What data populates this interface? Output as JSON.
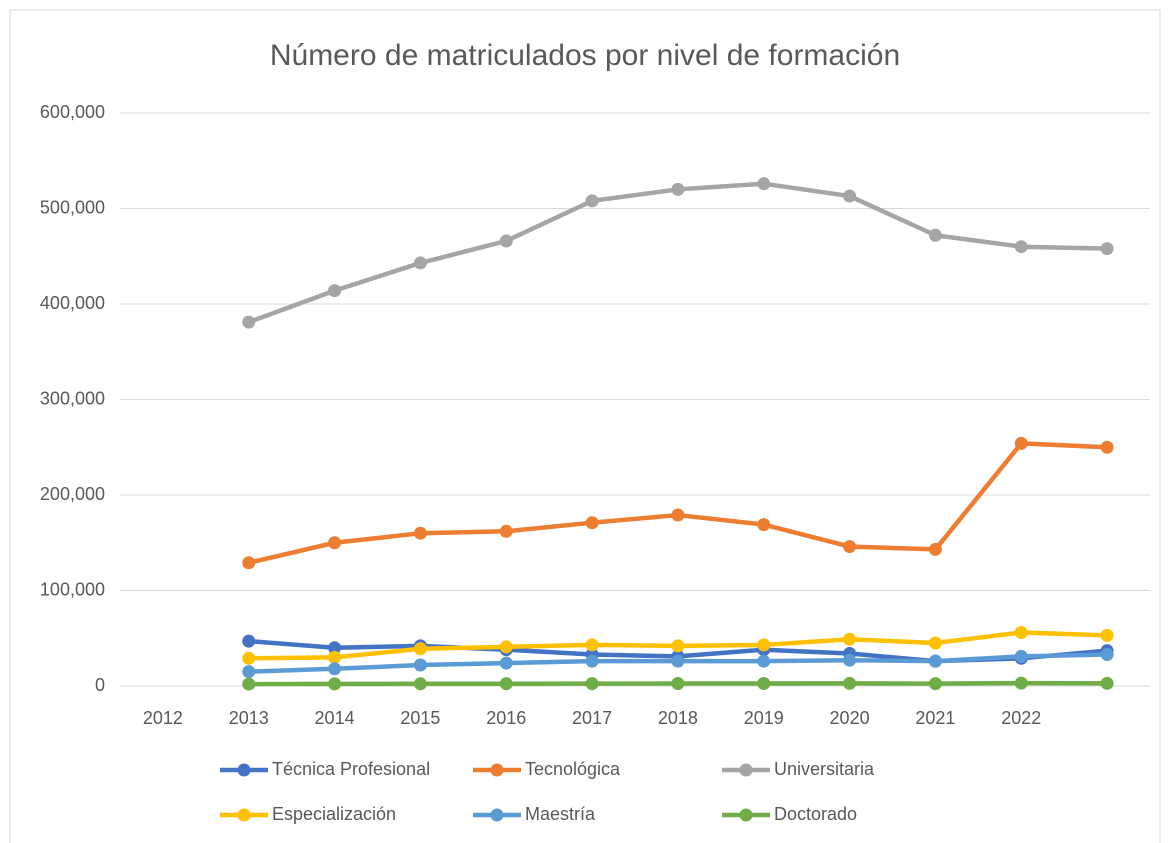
{
  "chart_data": {
    "type": "line",
    "title": "Número de matriculados por nivel de formación",
    "categories": [
      "2012",
      "2013",
      "2014",
      "2015",
      "2016",
      "2017",
      "2018",
      "2019",
      "2020",
      "2021",
      "2022",
      null
    ],
    "series": [
      {
        "name": "Técnica Profesional",
        "color": "#4472c4",
        "values": [
          null,
          47000,
          40000,
          42000,
          38000,
          33000,
          31000,
          38000,
          34000,
          26000,
          29000,
          37000
        ]
      },
      {
        "name": "Tecnológica",
        "color": "#ed7d31",
        "values": [
          null,
          129000,
          150000,
          160000,
          162000,
          171000,
          179000,
          169000,
          146000,
          143000,
          254000,
          250000
        ]
      },
      {
        "name": "Universitaria",
        "color": "#a5a5a5",
        "values": [
          null,
          381000,
          414000,
          443000,
          466000,
          508000,
          520000,
          526000,
          513000,
          472000,
          460000,
          458000
        ]
      },
      {
        "name": "Especialización",
        "color": "#ffc000",
        "values": [
          null,
          29000,
          30000,
          39000,
          41000,
          43000,
          42000,
          43000,
          49000,
          45000,
          56000,
          53000
        ]
      },
      {
        "name": "Maestría",
        "color": "#5b9bd5",
        "values": [
          null,
          15000,
          18000,
          22000,
          24000,
          26000,
          26000,
          26000,
          27000,
          26000,
          31000,
          33000
        ]
      },
      {
        "name": "Doctorado",
        "color": "#70ad47",
        "values": [
          null,
          2000,
          2200,
          2300,
          2400,
          2500,
          2600,
          2600,
          2700,
          2500,
          3000,
          2800
        ]
      }
    ],
    "ylim": [
      0,
      600000
    ],
    "yticks": [
      0,
      {
        "value": 100000,
        "label": "100,000"
      },
      {
        "value": 200000,
        "label": "200,000"
      },
      {
        "value": 300000,
        "label": "300,000"
      },
      {
        "value": 400000,
        "label": "400,000"
      },
      {
        "value": 500000,
        "label": "500,000"
      },
      {
        "value": 600000,
        "label": "600,000"
      }
    ],
    "grid": true,
    "legend": "bottom"
  }
}
